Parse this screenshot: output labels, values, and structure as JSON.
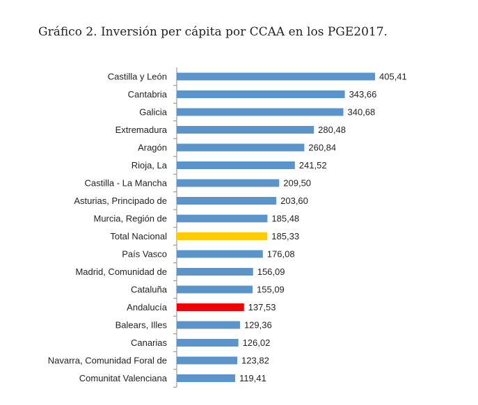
{
  "chart_data": {
    "type": "bar",
    "orientation": "horizontal",
    "title": "Gráfico 2. Inversión per cápita por CCAA en los PGE2017.",
    "xlabel": "",
    "ylabel": "",
    "xlim": [
      0,
      405.41
    ],
    "grid": false,
    "legend": "none",
    "categories": [
      "Castilla y León",
      "Cantabria",
      "Galicia",
      "Extremadura",
      "Aragón",
      "Rioja, La",
      "Castilla - La Mancha",
      "Asturias, Principado de",
      "Murcia, Región de",
      "Total Nacional",
      "País Vasco",
      "Madrid, Comunidad de",
      "Cataluña",
      "Andalucía",
      "Balears, Illes",
      "Canarias",
      "Navarra, Comunidad Foral de",
      "Comunitat Valenciana"
    ],
    "values": [
      405.41,
      343.66,
      340.68,
      280.48,
      260.84,
      241.52,
      209.5,
      203.6,
      185.48,
      185.33,
      176.08,
      156.09,
      155.09,
      137.53,
      129.36,
      126.02,
      123.82,
      119.41
    ],
    "value_labels": [
      "405,41",
      "343,66",
      "340,68",
      "280,48",
      "260,84",
      "241,52",
      "209,50",
      "203,60",
      "185,48",
      "185,33",
      "176,08",
      "156,09",
      "155,09",
      "137,53",
      "129,36",
      "126,02",
      "123,82",
      "119,41"
    ],
    "bar_colors": [
      "#5b93cb",
      "#5b93cb",
      "#5b93cb",
      "#5b93cb",
      "#5b93cb",
      "#5b93cb",
      "#5b93cb",
      "#5b93cb",
      "#5b93cb",
      "#ffcc00",
      "#5b93cb",
      "#5b93cb",
      "#5b93cb",
      "#f00000",
      "#5b93cb",
      "#5b93cb",
      "#5b93cb",
      "#5b93cb"
    ]
  },
  "colors": {
    "default_bar": "#5b93cb",
    "highlight_total": "#ffcc00",
    "highlight_andalucia": "#f00000",
    "axis": "#888888"
  }
}
